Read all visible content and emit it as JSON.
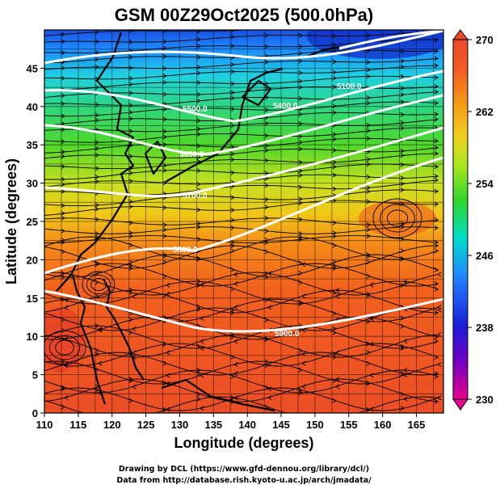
{
  "title": "GSM 00Z29Oct2025 (500.0hPa)",
  "x_axis": {
    "label": "Longitude (degrees)",
    "ticks": [
      "110",
      "115",
      "120",
      "125",
      "130",
      "135",
      "140",
      "145",
      "150",
      "155",
      "160",
      "165"
    ],
    "range": [
      110,
      169
    ]
  },
  "y_axis": {
    "label": "Latitude  (degrees)",
    "ticks": [
      "0",
      "5",
      "10",
      "15",
      "20",
      "25",
      "30",
      "35",
      "40",
      "45"
    ],
    "range": [
      0,
      50
    ]
  },
  "colorbar": {
    "ticks": [
      "230",
      "238",
      "246",
      "254",
      "262",
      "270"
    ],
    "min": 230,
    "max": 270,
    "colors": [
      "#e8008e",
      "#7a00c0",
      "#1a1ad8",
      "#1e8cff",
      "#00e0c8",
      "#2ed62e",
      "#a8e81e",
      "#f0d020",
      "#f59a18",
      "#f25a20",
      "#ea4a2c"
    ]
  },
  "contours": [
    {
      "label": "5100.0",
      "color": "#ffffff"
    },
    {
      "label": "5400.0",
      "color": "#ffffff"
    },
    {
      "label": "5500.0",
      "color": "#ffffff"
    },
    {
      "label": "5600.0",
      "color": "#ffffff"
    },
    {
      "label": "5700.0",
      "color": "#ffffff"
    },
    {
      "label": "5800.0",
      "color": "#ffffff"
    },
    {
      "label": "5900.0",
      "color": "#ffffff"
    }
  ],
  "credits": {
    "line1": "Drawing by DCL (https://www.gfd-dennou.org/library/dcl/)",
    "line2": "Data from http://database.rish.kyoto-u.ac.jp/arch/jmadata/"
  }
}
